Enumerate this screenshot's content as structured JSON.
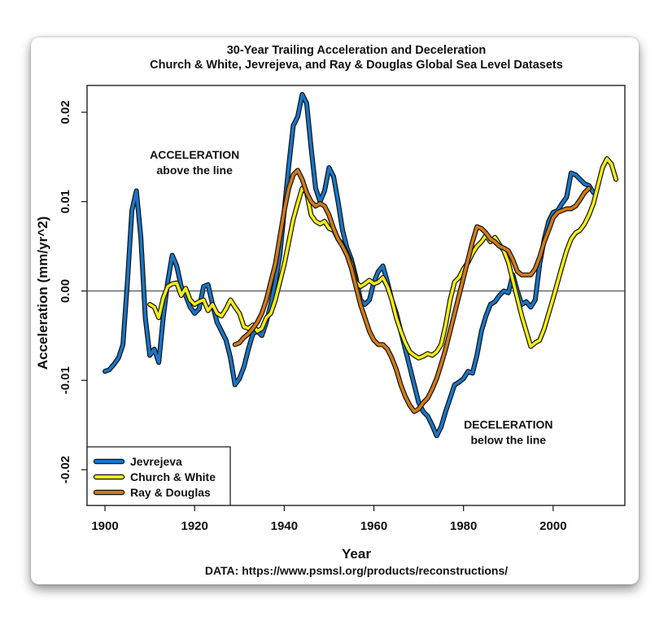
{
  "chart_data": {
    "type": "line",
    "title": "30-Year Trailing Acceleration and Deceleration",
    "subtitle": "Church & White, Jevrejeva, and Ray & Douglas Global Sea Level Datasets",
    "xlabel": "Year",
    "ylabel": "Acceleration (mm/yr^2)",
    "xlim": [
      1896,
      2016
    ],
    "ylim": [
      -0.024,
      0.023
    ],
    "xticks": [
      1900,
      1920,
      1940,
      1960,
      1980,
      2000
    ],
    "xtick_labels": [
      "1900",
      "1920",
      "1940",
      "1960",
      "1980",
      "2000"
    ],
    "yticks": [
      -0.02,
      -0.01,
      0.0,
      0.01,
      0.02
    ],
    "ytick_labels": [
      "-0.02",
      "-0.01",
      "0.00",
      "0.01",
      "0.02"
    ],
    "reference_line": 0,
    "annotations": [
      {
        "lines": [
          "ACCELERATION",
          "above the line"
        ],
        "x": 1920,
        "y": 0.0148
      },
      {
        "lines": [
          "DECELERATION",
          "below the line"
        ],
        "x": 1990,
        "y": -0.0154
      }
    ],
    "caption": "DATA: https://www.psmsl.org/products/reconstructions/",
    "legend_position": "bottom-left",
    "series": [
      {
        "name": "Jevrejeva",
        "color": "#1a75c6",
        "x": [
          1900,
          1901,
          1902,
          1903,
          1904,
          1905,
          1906,
          1907,
          1908,
          1909,
          1910,
          1911,
          1912,
          1913,
          1914,
          1915,
          1916,
          1917,
          1918,
          1919,
          1920,
          1921,
          1922,
          1923,
          1924,
          1925,
          1926,
          1927,
          1928,
          1929,
          1930,
          1931,
          1932,
          1933,
          1934,
          1935,
          1936,
          1937,
          1938,
          1939,
          1940,
          1941,
          1942,
          1943,
          1944,
          1945,
          1946,
          1947,
          1948,
          1949,
          1950,
          1951,
          1952,
          1953,
          1954,
          1955,
          1956,
          1957,
          1958,
          1959,
          1960,
          1961,
          1962,
          1963,
          1964,
          1965,
          1966,
          1967,
          1968,
          1969,
          1970,
          1971,
          1972,
          1973,
          1974,
          1975,
          1976,
          1977,
          1978,
          1979,
          1980,
          1981,
          1982,
          1983,
          1984,
          1985,
          1986,
          1987,
          1988,
          1989,
          1990,
          1991,
          1992,
          1993,
          1994,
          1995,
          1996,
          1997,
          1998,
          1999,
          2000,
          2001,
          2002,
          2003,
          2004,
          2005,
          2006,
          2007,
          2008,
          2009
        ],
        "y": [
          -0.009,
          -0.0088,
          -0.0082,
          -0.0075,
          -0.006,
          0.001,
          0.009,
          0.0112,
          0.006,
          -0.003,
          -0.0072,
          -0.0065,
          -0.008,
          -0.003,
          0.001,
          0.004,
          0.0028,
          0.0005,
          -0.0005,
          -0.0018,
          -0.0025,
          -0.002,
          0.0005,
          0.0007,
          -0.0015,
          -0.0035,
          -0.0045,
          -0.0055,
          -0.0075,
          -0.0105,
          -0.0098,
          -0.0085,
          -0.0065,
          -0.0048,
          -0.0045,
          -0.005,
          -0.0035,
          -0.0015,
          0.001,
          0.004,
          0.009,
          0.014,
          0.0185,
          0.0195,
          0.022,
          0.021,
          0.016,
          0.0115,
          0.01,
          0.0112,
          0.0138,
          0.0128,
          0.01,
          0.0068,
          0.0048,
          0.0035,
          0.0015,
          -0.001,
          -0.0015,
          -0.001,
          0.001,
          0.0022,
          0.0028,
          0.001,
          -0.001,
          -0.0025,
          -0.0045,
          -0.0065,
          -0.0085,
          -0.0105,
          -0.0125,
          -0.0135,
          -0.014,
          -0.015,
          -0.0162,
          -0.0152,
          -0.0135,
          -0.012,
          -0.0105,
          -0.0102,
          -0.0098,
          -0.009,
          -0.0092,
          -0.0072,
          -0.0045,
          -0.0028,
          -0.0015,
          -0.0012,
          -0.0005,
          0,
          -0.0002,
          0.0018,
          0,
          -0.0015,
          -0.0012,
          -0.0018,
          -0.001,
          0.003,
          0.0058,
          0.0078,
          0.0088,
          0.009,
          0.0098,
          0.0105,
          0.0132,
          0.013,
          0.0125,
          0.012,
          0.0118,
          0.011
        ],
        "first_digit_note": "Jevrejeva series"
      },
      {
        "name": "Church & White",
        "color": "#f2ec1a",
        "x": [
          1910,
          1911,
          1912,
          1913,
          1914,
          1915,
          1916,
          1917,
          1918,
          1919,
          1920,
          1921,
          1922,
          1923,
          1924,
          1925,
          1926,
          1927,
          1928,
          1929,
          1930,
          1931,
          1932,
          1933,
          1934,
          1935,
          1936,
          1937,
          1938,
          1939,
          1940,
          1941,
          1942,
          1943,
          1944,
          1945,
          1946,
          1947,
          1948,
          1949,
          1950,
          1951,
          1952,
          1953,
          1954,
          1955,
          1956,
          1957,
          1958,
          1959,
          1960,
          1961,
          1962,
          1963,
          1964,
          1965,
          1966,
          1967,
          1968,
          1969,
          1970,
          1971,
          1972,
          1973,
          1974,
          1975,
          1976,
          1977,
          1978,
          1979,
          1980,
          1981,
          1982,
          1983,
          1984,
          1985,
          1986,
          1987,
          1988,
          1989,
          1990,
          1991,
          1992,
          1993,
          1994,
          1995,
          1996,
          1997,
          1998,
          1999,
          2000,
          2001,
          2002,
          2003,
          2004,
          2005,
          2006,
          2007,
          2008,
          2009,
          2010,
          2011,
          2012,
          2013,
          2014
        ],
        "y": [
          -0.0015,
          -0.0018,
          -0.003,
          -0.0008,
          0.0005,
          0.0008,
          0.0009,
          -0.0005,
          0.0003,
          -0.001,
          -0.0015,
          -0.0012,
          -0.001,
          -0.0022,
          -0.0015,
          -0.0025,
          -0.0028,
          -0.002,
          -0.001,
          -0.0018,
          -0.0025,
          -0.004,
          -0.0042,
          -0.0038,
          -0.0045,
          -0.0042,
          -0.003,
          -0.0025,
          -0.001,
          0.001,
          0.003,
          0.0055,
          0.008,
          0.0098,
          0.0115,
          0.011,
          0.0085,
          0.0078,
          0.0075,
          0.0078,
          0.007,
          0.0068,
          0.0058,
          0.0052,
          0.0042,
          0.003,
          0.001,
          0.0005,
          0.0008,
          0.0012,
          0.0008,
          0.001,
          0.0015,
          0.0005,
          -0.001,
          -0.003,
          -0.0045,
          -0.0058,
          -0.0068,
          -0.0072,
          -0.0075,
          -0.0073,
          -0.007,
          -0.0072,
          -0.0068,
          -0.006,
          -0.0038,
          -0.001,
          0.001,
          0.0015,
          0.0025,
          0.0032,
          0.0042,
          0.005,
          0.0055,
          0.0062,
          0.0055,
          0.006,
          0.0052,
          0.0045,
          0.0032,
          0.0012,
          -0.0008,
          -0.0028,
          -0.0045,
          -0.0062,
          -0.0058,
          -0.0055,
          -0.0042,
          -0.0025,
          -0.0008,
          0.001,
          0.0028,
          0.0045,
          0.0058,
          0.0065,
          0.0068,
          0.0075,
          0.0085,
          0.0098,
          0.0118,
          0.0138,
          0.0148,
          0.0142,
          0.0125
        ],
        "first_digit_note": "Church & White series"
      },
      {
        "name": "Ray & Douglas",
        "color": "#d07a1a",
        "x": [
          1929,
          1930,
          1931,
          1932,
          1933,
          1934,
          1935,
          1936,
          1937,
          1938,
          1939,
          1940,
          1941,
          1942,
          1943,
          1944,
          1945,
          1946,
          1947,
          1948,
          1949,
          1950,
          1951,
          1952,
          1953,
          1954,
          1955,
          1956,
          1957,
          1958,
          1959,
          1960,
          1961,
          1962,
          1963,
          1964,
          1965,
          1966,
          1967,
          1968,
          1969,
          1970,
          1971,
          1972,
          1973,
          1974,
          1975,
          1976,
          1977,
          1978,
          1979,
          1980,
          1981,
          1982,
          1983,
          1984,
          1985,
          1986,
          1987,
          1988,
          1989,
          1990,
          1991,
          1992,
          1993,
          1994,
          1995,
          1996,
          1997,
          1998,
          1999,
          2000,
          2001,
          2002,
          2003,
          2004,
          2005,
          2006,
          2007,
          2008
        ],
        "y": [
          -0.006,
          -0.0058,
          -0.0052,
          -0.0048,
          -0.0042,
          -0.0035,
          -0.0025,
          -0.001,
          0.001,
          0.003,
          0.006,
          0.009,
          0.0115,
          0.013,
          0.0135,
          0.0125,
          0.011,
          0.01,
          0.0095,
          0.0098,
          0.0095,
          0.0085,
          0.007,
          0.0058,
          0.005,
          0.004,
          0.0025,
          0.0005,
          -0.0015,
          -0.003,
          -0.0045,
          -0.0055,
          -0.006,
          -0.006,
          -0.0065,
          -0.0075,
          -0.0088,
          -0.0105,
          -0.0118,
          -0.0128,
          -0.0135,
          -0.0132,
          -0.0125,
          -0.012,
          -0.011,
          -0.0098,
          -0.0082,
          -0.0065,
          -0.0045,
          -0.0025,
          -0.0005,
          0.0015,
          0.0035,
          0.0055,
          0.0072,
          0.007,
          0.0065,
          0.0058,
          0.0055,
          0.005,
          0.0048,
          0.0045,
          0.0035,
          0.0022,
          0.0018,
          0.0018,
          0.0018,
          0.0025,
          0.0038,
          0.0055,
          0.0068,
          0.0082,
          0.0088,
          0.009,
          0.0092,
          0.0092,
          0.0095,
          0.0102,
          0.011,
          0.0115
        ],
        "first_digit_note": "Ray & Douglas series"
      }
    ]
  }
}
